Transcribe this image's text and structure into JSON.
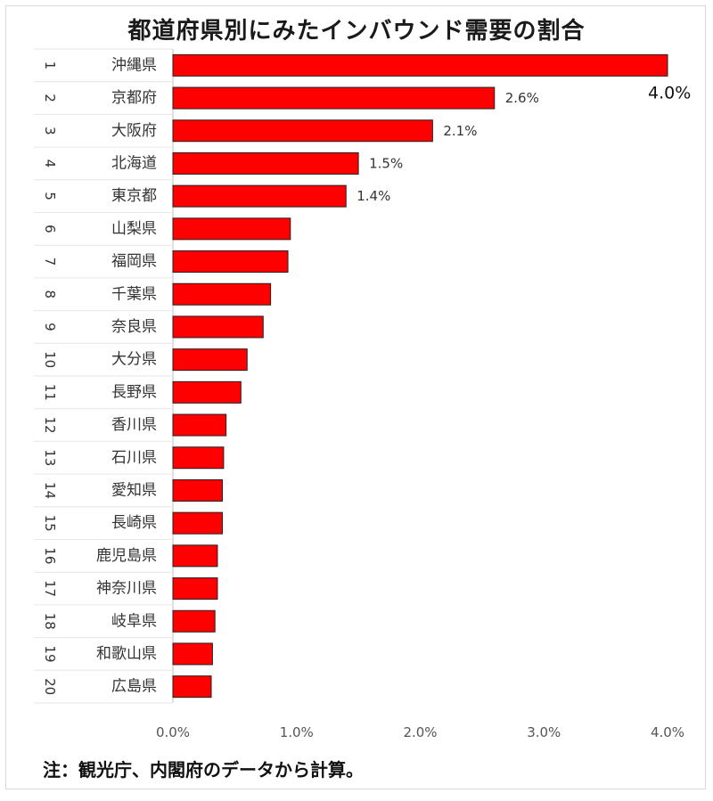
{
  "chart_data": {
    "type": "bar",
    "orientation": "horizontal",
    "title": "都道府県別にみたインバウンド需要の割合",
    "note": "注：観光庁、内閣府のデータから計算。",
    "ranks": [
      "1",
      "2",
      "3",
      "4",
      "5",
      "6",
      "7",
      "8",
      "9",
      "10",
      "11",
      "12",
      "13",
      "14",
      "15",
      "16",
      "17",
      "18",
      "19",
      "20"
    ],
    "categories": [
      "沖縄県",
      "京都府",
      "大阪府",
      "北海道",
      "東京都",
      "山梨県",
      "福岡県",
      "千葉県",
      "奈良県",
      "大分県",
      "長野県",
      "香川県",
      "石川県",
      "愛知県",
      "長崎県",
      "鹿児島県",
      "神奈川県",
      "岐阜県",
      "和歌山県",
      "広島県"
    ],
    "values": [
      4.0,
      2.6,
      2.1,
      1.5,
      1.4,
      0.95,
      0.93,
      0.79,
      0.73,
      0.6,
      0.55,
      0.43,
      0.41,
      0.4,
      0.4,
      0.36,
      0.36,
      0.34,
      0.32,
      0.31
    ],
    "data_labels": [
      "4.0%",
      "2.6%",
      "2.1%",
      "1.5%",
      "1.4%",
      "",
      "",
      "",
      "",
      "",
      "",
      "",
      "",
      "",
      "",
      "",
      "",
      "",
      "",
      ""
    ],
    "xlim": [
      0,
      4.0
    ],
    "x_ticks": [
      0,
      1,
      2,
      3,
      4
    ],
    "x_tick_labels": [
      "0.0%",
      "1.0%",
      "2.0%",
      "3.0%",
      "4.0%"
    ],
    "bar_color": "#ff0000",
    "bar_outline": "#222222",
    "grid": false,
    "legend": "none"
  }
}
